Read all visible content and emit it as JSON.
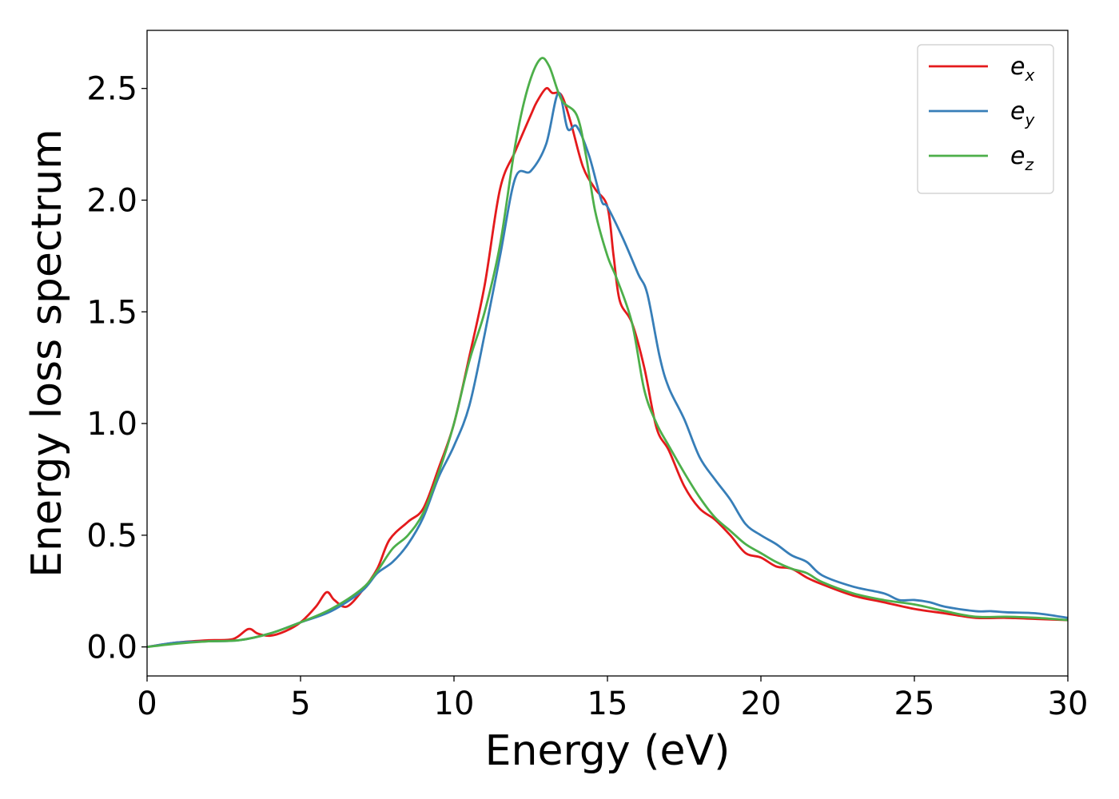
{
  "chart_data": {
    "type": "line",
    "xlabel": "Energy (eV)",
    "ylabel": "Energy loss spectrum",
    "xlim": [
      0,
      30
    ],
    "ylim": [
      -0.13,
      2.76
    ],
    "xticks": [
      0,
      5,
      10,
      15,
      20,
      25,
      30
    ],
    "xtick_labels": [
      "0",
      "5",
      "10",
      "15",
      "20",
      "25",
      "30"
    ],
    "yticks": [
      0.0,
      0.5,
      1.0,
      1.5,
      2.0,
      2.5
    ],
    "ytick_labels": [
      "0.0",
      "0.5",
      "1.0",
      "1.5",
      "2.0",
      "2.5"
    ],
    "grid": false,
    "legend_position": "top-right",
    "series": [
      {
        "name": "e",
        "name_sub": "x",
        "color": "#e41a1c",
        "points": [
          [
            0,
            0
          ],
          [
            1,
            0.02
          ],
          [
            2,
            0.03
          ],
          [
            2.8,
            0.035
          ],
          [
            3.3,
            0.08
          ],
          [
            3.6,
            0.06
          ],
          [
            4,
            0.05
          ],
          [
            4.5,
            0.07
          ],
          [
            5,
            0.11
          ],
          [
            5.5,
            0.18
          ],
          [
            5.85,
            0.245
          ],
          [
            6.1,
            0.21
          ],
          [
            6.5,
            0.18
          ],
          [
            7,
            0.25
          ],
          [
            7.5,
            0.35
          ],
          [
            7.9,
            0.48
          ],
          [
            8.5,
            0.56
          ],
          [
            9,
            0.62
          ],
          [
            9.5,
            0.8
          ],
          [
            10,
            1.0
          ],
          [
            10.5,
            1.3
          ],
          [
            11,
            1.62
          ],
          [
            11.5,
            2.05
          ],
          [
            12,
            2.22
          ],
          [
            12.5,
            2.38
          ],
          [
            12.7,
            2.44
          ],
          [
            13,
            2.5
          ],
          [
            13.2,
            2.48
          ],
          [
            13.5,
            2.47
          ],
          [
            13.8,
            2.35
          ],
          [
            14.2,
            2.15
          ],
          [
            14.6,
            2.05
          ],
          [
            15,
            1.97
          ],
          [
            15.2,
            1.75
          ],
          [
            15.4,
            1.55
          ],
          [
            15.8,
            1.45
          ],
          [
            16.2,
            1.25
          ],
          [
            16.6,
            0.98
          ],
          [
            17,
            0.88
          ],
          [
            17.5,
            0.72
          ],
          [
            18,
            0.62
          ],
          [
            18.5,
            0.57
          ],
          [
            19,
            0.5
          ],
          [
            19.5,
            0.42
          ],
          [
            20,
            0.4
          ],
          [
            20.5,
            0.36
          ],
          [
            21,
            0.35
          ],
          [
            21.5,
            0.31
          ],
          [
            22,
            0.28
          ],
          [
            23,
            0.23
          ],
          [
            24,
            0.2
          ],
          [
            25,
            0.17
          ],
          [
            26,
            0.15
          ],
          [
            27,
            0.13
          ],
          [
            28,
            0.13
          ],
          [
            29,
            0.125
          ],
          [
            30,
            0.12
          ]
        ]
      },
      {
        "name": "e",
        "name_sub": "y",
        "color": "#377eb8",
        "points": [
          [
            0,
            0
          ],
          [
            1,
            0.02
          ],
          [
            2,
            0.025
          ],
          [
            3,
            0.03
          ],
          [
            4,
            0.06
          ],
          [
            5,
            0.11
          ],
          [
            6,
            0.16
          ],
          [
            7,
            0.25
          ],
          [
            7.5,
            0.33
          ],
          [
            8,
            0.38
          ],
          [
            8.5,
            0.46
          ],
          [
            9,
            0.58
          ],
          [
            9.5,
            0.76
          ],
          [
            10,
            0.9
          ],
          [
            10.5,
            1.08
          ],
          [
            11,
            1.4
          ],
          [
            11.5,
            1.75
          ],
          [
            12,
            2.1
          ],
          [
            12.5,
            2.13
          ],
          [
            13,
            2.25
          ],
          [
            13.4,
            2.48
          ],
          [
            13.7,
            2.32
          ],
          [
            14,
            2.33
          ],
          [
            14.4,
            2.2
          ],
          [
            14.8,
            2.0
          ],
          [
            15,
            1.97
          ],
          [
            15.5,
            1.83
          ],
          [
            16,
            1.67
          ],
          [
            16.3,
            1.58
          ],
          [
            16.7,
            1.3
          ],
          [
            17,
            1.16
          ],
          [
            17.5,
            1.02
          ],
          [
            18,
            0.85
          ],
          [
            18.5,
            0.75
          ],
          [
            19,
            0.66
          ],
          [
            19.5,
            0.55
          ],
          [
            20,
            0.5
          ],
          [
            20.5,
            0.46
          ],
          [
            21,
            0.41
          ],
          [
            21.5,
            0.38
          ],
          [
            22,
            0.32
          ],
          [
            23,
            0.27
          ],
          [
            24,
            0.24
          ],
          [
            24.5,
            0.21
          ],
          [
            25,
            0.21
          ],
          [
            25.5,
            0.2
          ],
          [
            26,
            0.18
          ],
          [
            27,
            0.16
          ],
          [
            27.5,
            0.16
          ],
          [
            28,
            0.155
          ],
          [
            29,
            0.15
          ],
          [
            30,
            0.13
          ]
        ]
      },
      {
        "name": "e",
        "name_sub": "z",
        "color": "#4daf4a",
        "points": [
          [
            0,
            0
          ],
          [
            1,
            0.015
          ],
          [
            2,
            0.025
          ],
          [
            3,
            0.03
          ],
          [
            4,
            0.06
          ],
          [
            5,
            0.11
          ],
          [
            6,
            0.17
          ],
          [
            7,
            0.26
          ],
          [
            7.5,
            0.34
          ],
          [
            8,
            0.44
          ],
          [
            8.5,
            0.5
          ],
          [
            9,
            0.6
          ],
          [
            9.5,
            0.78
          ],
          [
            10,
            1.0
          ],
          [
            10.5,
            1.28
          ],
          [
            11,
            1.5
          ],
          [
            11.5,
            1.8
          ],
          [
            12,
            2.25
          ],
          [
            12.4,
            2.5
          ],
          [
            12.8,
            2.63
          ],
          [
            13.1,
            2.6
          ],
          [
            13.5,
            2.45
          ],
          [
            14,
            2.38
          ],
          [
            14.3,
            2.2
          ],
          [
            14.6,
            1.95
          ],
          [
            15,
            1.75
          ],
          [
            15.3,
            1.65
          ],
          [
            15.8,
            1.45
          ],
          [
            16.2,
            1.15
          ],
          [
            16.6,
            1.0
          ],
          [
            17,
            0.9
          ],
          [
            17.5,
            0.78
          ],
          [
            18,
            0.67
          ],
          [
            18.5,
            0.58
          ],
          [
            19,
            0.52
          ],
          [
            19.5,
            0.46
          ],
          [
            20,
            0.42
          ],
          [
            20.5,
            0.38
          ],
          [
            21,
            0.35
          ],
          [
            21.5,
            0.33
          ],
          [
            22,
            0.29
          ],
          [
            23,
            0.24
          ],
          [
            24,
            0.21
          ],
          [
            25,
            0.19
          ],
          [
            26,
            0.16
          ],
          [
            27,
            0.135
          ],
          [
            28,
            0.135
          ],
          [
            29,
            0.13
          ],
          [
            30,
            0.12
          ]
        ]
      }
    ]
  }
}
